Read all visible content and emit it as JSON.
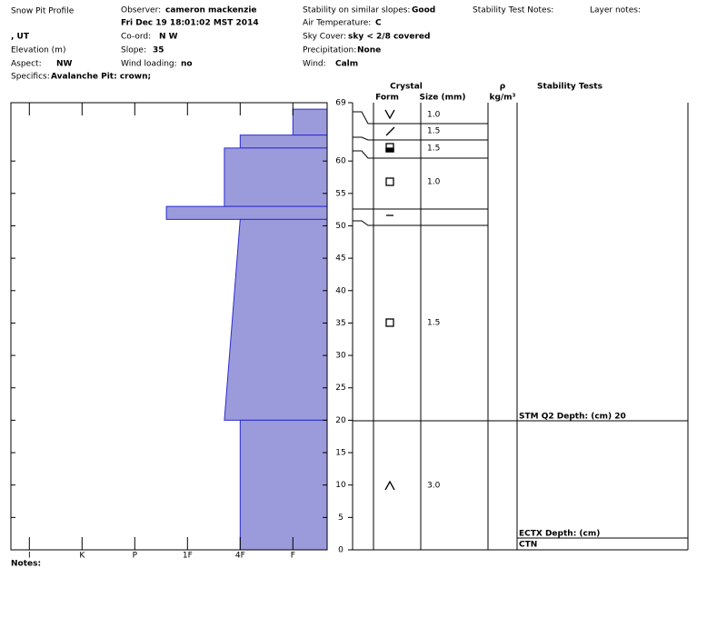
{
  "header": {
    "title": "Snow Pit Profile",
    "observer_label": "Observer:",
    "observer": "cameron mackenzie",
    "date": "Fri Dec 19 18:01:02 MST 2014",
    "location": ", UT",
    "coord_label": "Co-ord:",
    "coord": "N  W",
    "elevation_label": "Elevation (m)",
    "slope_label": "Slope:",
    "slope": "35",
    "aspect_label": "Aspect:",
    "aspect": "NW",
    "wind_loading_label": "Wind loading:",
    "wind_loading": "no",
    "specifics_label": "Specifics:",
    "specifics": "Avalanche Pit: crown;",
    "stability_label": "Stability on similar slopes:",
    "stability": "Good",
    "air_temp_label": "Air Temperature:",
    "air_temp": "C",
    "sky_label": "Sky Cover:",
    "sky": "sky < 2/8 covered",
    "precip_label": "Precipitation:",
    "precip": "None",
    "wind_label": "Wind:",
    "wind": "Calm",
    "test_notes_label": "Stability Test Notes:",
    "layer_notes_label": "Layer notes:",
    "notes_label": "Notes:"
  },
  "table": {
    "crystal": "Crystal",
    "form": "Form",
    "size": "Size (mm)",
    "rho": "ρ",
    "rho_unit": "kg/m³",
    "tests": "Stability Tests",
    "sizes": [
      "1.0",
      "1.5",
      "1.5",
      "1.0",
      "1.5",
      "3.0"
    ],
    "test_rows": [
      "STM Q2 Depth: (cm) 20",
      "ECTX  Depth: (cm)",
      "CTN"
    ]
  },
  "chart_data": {
    "type": "profile",
    "color": "#9b9bdb",
    "ylim": [
      0,
      69
    ],
    "yticks": [
      0,
      5,
      10,
      15,
      20,
      25,
      30,
      35,
      40,
      45,
      50,
      55,
      60,
      69
    ],
    "xlim": [
      6.35,
      0.35
    ],
    "xticks": [
      {
        "value": 6,
        "label": "I"
      },
      {
        "value": 5,
        "label": "K"
      },
      {
        "value": 4,
        "label": "P"
      },
      {
        "value": 3,
        "label": "1F"
      },
      {
        "value": 2,
        "label": "4F"
      },
      {
        "value": 1,
        "label": "F"
      }
    ],
    "layers": [
      {
        "top": 68,
        "bottom": 64,
        "hardness_top": 1,
        "hardness_bottom": 1
      },
      {
        "top": 64,
        "bottom": 62,
        "hardness_top": 2,
        "hardness_bottom": 2
      },
      {
        "top": 62,
        "bottom": 53,
        "hardness_top": 2.3,
        "hardness_bottom": 2.3
      },
      {
        "top": 53,
        "bottom": 51,
        "hardness_top": 3.4,
        "hardness_bottom": 3.4
      },
      {
        "top": 51,
        "bottom": 20,
        "hardness_top": 2,
        "hardness_bottom": 2.3
      },
      {
        "top": 20,
        "bottom": 0,
        "hardness_top": 2,
        "hardness_bottom": 2
      }
    ]
  }
}
